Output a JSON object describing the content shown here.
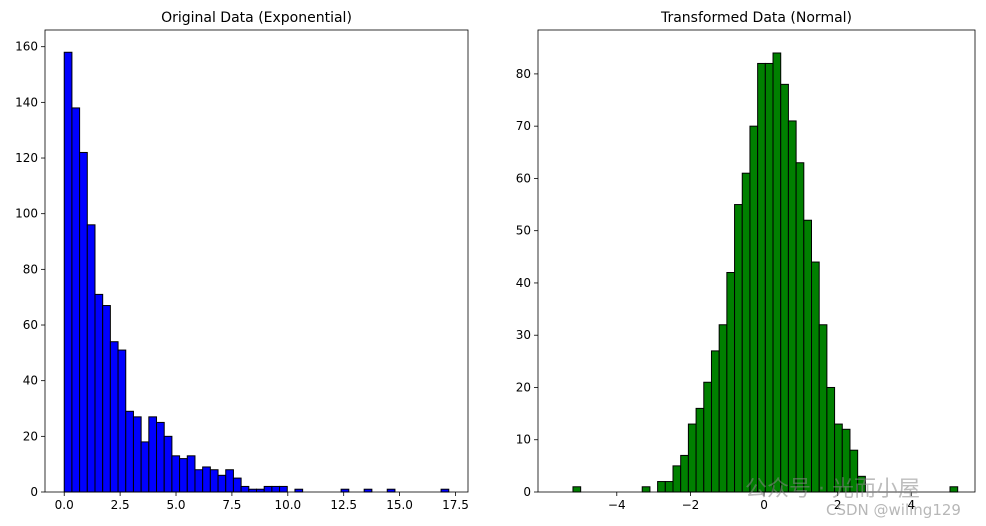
{
  "chart_data": [
    {
      "type": "histogram",
      "title": "Original Data (Exponential)",
      "color": "#0000ff",
      "edgecolor": "#000000",
      "bins": [
        0,
        0.344,
        0.688,
        1.032,
        1.376,
        1.72,
        2.064,
        2.408,
        2.752,
        3.096,
        3.44,
        3.784,
        4.128,
        4.472,
        4.816,
        5.16,
        5.504,
        5.848,
        6.192,
        6.536,
        6.88,
        7.224,
        7.568,
        7.912,
        8.256,
        8.6,
        8.944,
        9.288,
        9.632,
        9.976,
        10.32,
        10.664,
        11.008,
        11.352,
        11.696,
        12.04,
        12.384,
        12.728,
        13.072,
        13.416,
        13.76,
        14.104,
        14.448,
        14.792,
        15.136,
        15.48,
        15.824,
        16.168,
        16.512,
        16.856,
        17.2
      ],
      "values": [
        158,
        138,
        122,
        96,
        71,
        67,
        54,
        51,
        29,
        27,
        18,
        27,
        25,
        20,
        13,
        12,
        13,
        8,
        9,
        8,
        6,
        8,
        5,
        2,
        1,
        1,
        2,
        2,
        2,
        0,
        1,
        0,
        0,
        0,
        0,
        0,
        1,
        0,
        0,
        1,
        0,
        0,
        1,
        0,
        0,
        0,
        0,
        0,
        0,
        1
      ],
      "xlim": [
        -0.86,
        18.06
      ],
      "ylim": [
        0,
        166
      ],
      "xticks": [
        {
          "value": 0,
          "label": "0.0"
        },
        2.5,
        {
          "value": 5,
          "label": "5.0"
        },
        7.5,
        {
          "value": 10,
          "label": "10.0"
        },
        12.5,
        {
          "value": 15,
          "label": "15.0"
        },
        17.5
      ],
      "yticks": [
        0,
        20,
        40,
        60,
        80,
        100,
        120,
        140,
        160
      ]
    },
    {
      "type": "histogram",
      "title": "Transformed Data (Normal)",
      "color": "#008000",
      "edgecolor": "#000000",
      "bins": [
        -5.19,
        -4.981,
        -4.772,
        -4.563,
        -4.354,
        -4.145,
        -3.936,
        -3.727,
        -3.518,
        -3.309,
        -3.1,
        -2.891,
        -2.682,
        -2.473,
        -2.264,
        -2.055,
        -1.846,
        -1.637,
        -1.428,
        -1.219,
        -1.01,
        -0.801,
        -0.592,
        -0.383,
        -0.174,
        0.035,
        0.244,
        0.453,
        0.662,
        0.871,
        1.08,
        1.289,
        1.498,
        1.707,
        1.916,
        2.125,
        2.334,
        2.543,
        2.752,
        2.961,
        3.17,
        3.379,
        3.588,
        3.797,
        4.006,
        4.215,
        4.424,
        4.633,
        4.842,
        5.051,
        5.26
      ],
      "values": [
        1,
        0,
        0,
        0,
        0,
        0,
        0,
        0,
        0,
        1,
        0,
        2,
        2,
        5,
        7,
        13,
        16,
        21,
        27,
        32,
        42,
        55,
        61,
        70,
        82,
        82,
        84,
        78,
        71,
        63,
        52,
        44,
        32,
        20,
        13,
        12,
        8,
        3,
        0,
        0,
        0,
        0,
        0,
        0,
        0,
        0,
        0,
        0,
        0,
        1
      ],
      "xlim": [
        -6.14,
        5.73
      ],
      "ylim": [
        0,
        88.4
      ],
      "xticks": [
        {
          "value": -4,
          "label": "−4"
        },
        {
          "value": -2,
          "label": "−2"
        },
        0,
        2,
        4
      ],
      "yticks": [
        0,
        10,
        20,
        30,
        40,
        50,
        60,
        70,
        80
      ]
    }
  ],
  "watermark": {
    "line1": "公众号 · 光而小屋",
    "line2": "CSDN @wiling129"
  }
}
